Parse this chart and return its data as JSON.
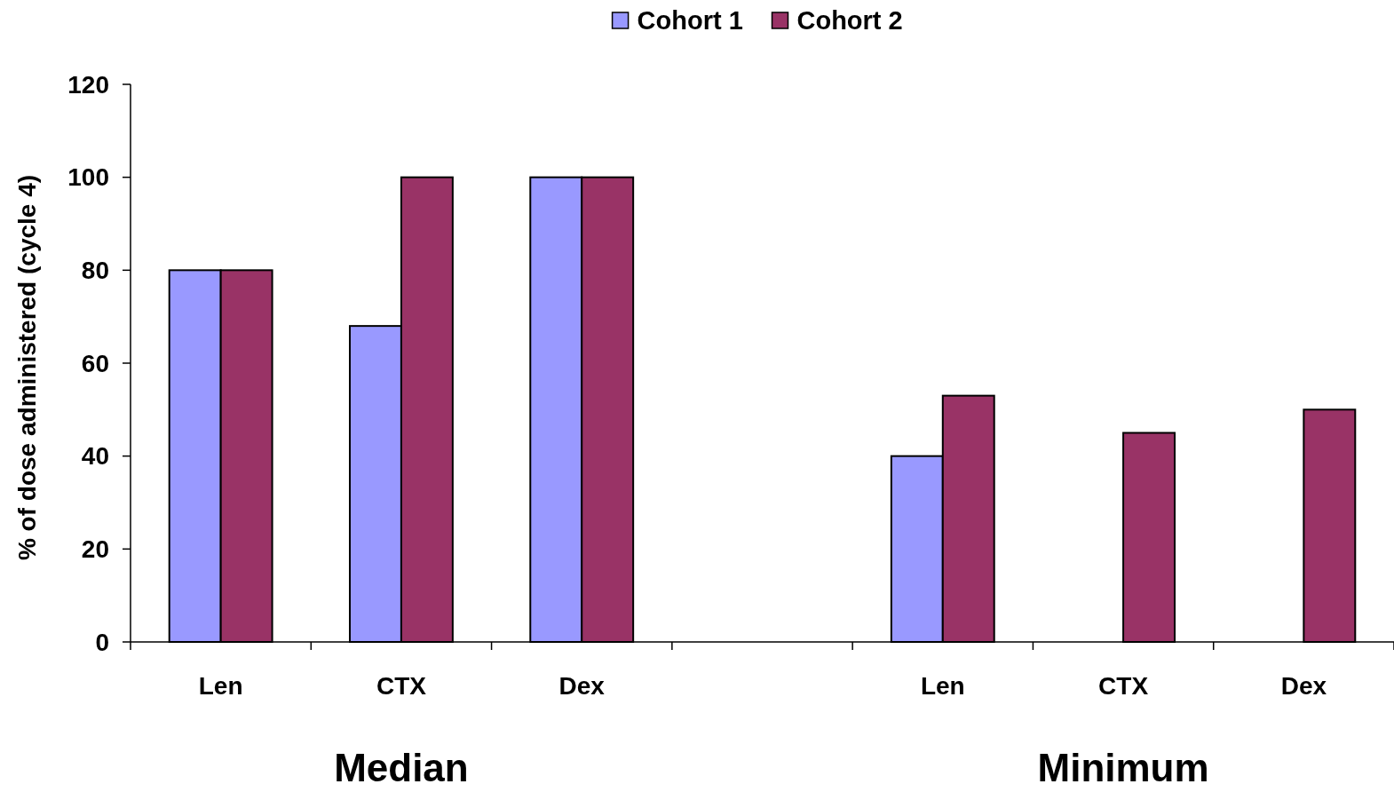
{
  "chart_data": {
    "type": "bar",
    "categories": [
      "Len",
      "CTX",
      "Dex",
      null,
      "Len",
      "CTX",
      "Dex"
    ],
    "series": [
      {
        "name": "Cohort 1",
        "color": "#9999ff",
        "values": [
          80,
          68,
          100,
          null,
          40,
          null,
          null
        ]
      },
      {
        "name": "Cohort 2",
        "color": "#993366",
        "values": [
          80,
          100,
          100,
          null,
          53,
          45,
          50
        ]
      }
    ],
    "ylabel": "% of dose administered (cycle 4)",
    "ylim": [
      0,
      120
    ],
    "yticks": [
      0,
      20,
      40,
      60,
      80,
      100,
      120
    ],
    "legend": "top",
    "annotations": [
      "Median",
      "Minimum"
    ]
  }
}
